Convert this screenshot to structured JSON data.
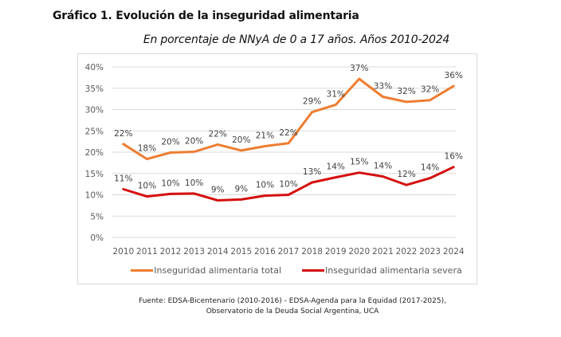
{
  "header": {
    "title": "Gráfico 1. Evolución de la inseguridad alimentaria",
    "subtitle": "En porcentaje de NNyA de 0 a 17 años. Años 2010-2024"
  },
  "source": {
    "line1": "Fuente: EDSA-Bicentenario (2010-2016) - EDSA-Agenda para la Equidad (2017-2025),",
    "line2": "Observatorio de la Deuda Social Argentina, UCA"
  },
  "chart_data": {
    "type": "line",
    "title": "Gráfico 1. Evolución de la inseguridad alimentaria",
    "subtitle": "En porcentaje de NNyA de 0 a 17 años. Años 2010-2024",
    "xlabel": "",
    "ylabel": "",
    "x": [
      "2010",
      "2011",
      "2012",
      "2013",
      "2014",
      "2015",
      "2016",
      "2017",
      "2018",
      "2019",
      "2020",
      "2021",
      "2022",
      "2023",
      "2024"
    ],
    "ylim": [
      0,
      40
    ],
    "yticks": [
      0,
      5,
      10,
      15,
      20,
      25,
      30,
      35,
      40
    ],
    "ytick_labels": [
      "0%",
      "5%",
      "10%",
      "15%",
      "20%",
      "25%",
      "30%",
      "35%",
      "40%"
    ],
    "grid": true,
    "legend_position": "bottom",
    "series": [
      {
        "name": "Inseguridad alimentaria total",
        "color": "#ED7D31",
        "values": [
          21.9,
          18.4,
          19.9,
          20.1,
          21.8,
          20.4,
          21.4,
          22.1,
          29.4,
          31.1,
          37.2,
          33.0,
          31.8,
          32.2,
          35.5
        ],
        "labels": [
          "22%",
          "18%",
          "20%",
          "20%",
          "22%",
          "20%",
          "21%",
          "22%",
          "29%",
          "31%",
          "37%",
          "33%",
          "32%",
          "32%",
          "36%"
        ]
      },
      {
        "name": "Inseguridad alimentaria severa",
        "color": "#D50F0F",
        "values": [
          11.3,
          9.6,
          10.2,
          10.3,
          8.7,
          8.9,
          9.8,
          10.0,
          12.9,
          14.1,
          15.2,
          14.3,
          12.3,
          13.9,
          16.5
        ],
        "labels": [
          "11%",
          "10%",
          "10%",
          "10%",
          "9%",
          "9%",
          "10%",
          "10%",
          "13%",
          "14%",
          "15%",
          "14%",
          "12%",
          "14%",
          "16%"
        ]
      }
    ]
  }
}
